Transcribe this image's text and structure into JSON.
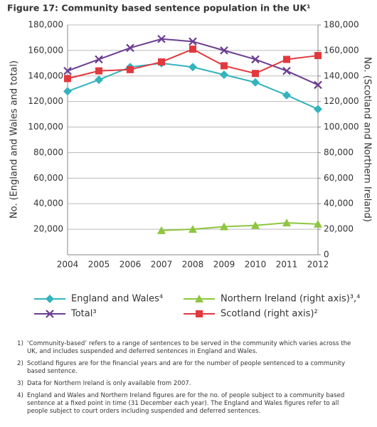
{
  "chart_data": {
    "type": "line",
    "title": "Figure 17: Community based sentence population in the UK¹",
    "y_label": "No. (England and Wales and total)",
    "y2_label": "No. (Scotland and Northern Ireland)",
    "categories": [
      "2004",
      "2005",
      "2006",
      "2007",
      "2008",
      "2009",
      "2010",
      "2011",
      "2012"
    ],
    "ylim": [
      0,
      180000
    ],
    "yticks": [
      {
        "value": 20000,
        "label": "20,000"
      },
      {
        "value": 40000,
        "label": "40,000"
      },
      {
        "value": 60000,
        "label": "60,000"
      },
      {
        "value": 80000,
        "label": "80,000"
      },
      {
        "value": 100000,
        "label": "100,000"
      },
      {
        "value": 120000,
        "label": "120,000"
      },
      {
        "value": 140000,
        "label": "140,000"
      },
      {
        "value": 160000,
        "label": "160,000"
      },
      {
        "value": 180000,
        "label": "180,000"
      }
    ],
    "y2lim": [
      0,
      180000
    ],
    "y2ticks": [
      0,
      {
        "value": 20000,
        "label": "20,000"
      },
      {
        "value": 40000,
        "label": "40,000"
      },
      {
        "value": 60000,
        "label": "60,000"
      },
      {
        "value": 80000,
        "label": "80,000"
      },
      {
        "value": 100000,
        "label": "100,000"
      },
      {
        "value": 120000,
        "label": "120,000"
      },
      {
        "value": 140000,
        "label": "140,000"
      },
      {
        "value": 160000,
        "label": "160,000"
      },
      {
        "value": 180000,
        "label": "180,000"
      }
    ],
    "grid": true,
    "series": [
      {
        "name": "England and Wales⁴",
        "color": "#33b3bd",
        "marker": "diamond",
        "values": [
          128000,
          137000,
          147000,
          150000,
          147000,
          141000,
          135000,
          125000,
          114000
        ]
      },
      {
        "name": "Northern Ireland (right axis)³,⁴",
        "color": "#8dc63f",
        "marker": "triangle",
        "axis": "y2",
        "values": [
          null,
          null,
          null,
          19000,
          20000,
          22000,
          23000,
          25000,
          24000
        ]
      },
      {
        "name": "Total³",
        "color": "#6b3d91",
        "marker": "x",
        "values": [
          144000,
          153000,
          162000,
          169000,
          167000,
          160000,
          153000,
          144000,
          133000
        ]
      },
      {
        "name": "Scotland (right axis)²",
        "color": "#e2393e",
        "marker": "square",
        "axis": "y2",
        "values": [
          138000,
          144000,
          145000,
          151000,
          161000,
          148000,
          142000,
          153000,
          156000
        ]
      }
    ]
  },
  "footnotes": [
    {
      "marker": "1)",
      "text": "‘Community-based’ refers to a range of sentences to be served in the community which varies across the UK, and includes suspended and deferred sentences in England and Wales."
    },
    {
      "marker": "2)",
      "text": "Scotland figures are for the financial years and are for the number of people sentenced to a community based sentence."
    },
    {
      "marker": "3)",
      "text": "Data for Northern Ireland is only available from 2007."
    },
    {
      "marker": "4)",
      "text": "England and Wales and Northern Ireland figures are for the no. of people subject to a community based sentence at a fixed point in time (31 December each year). The England and Wales figures refer to all people subject to court orders including suspended and deferred sentences."
    }
  ]
}
